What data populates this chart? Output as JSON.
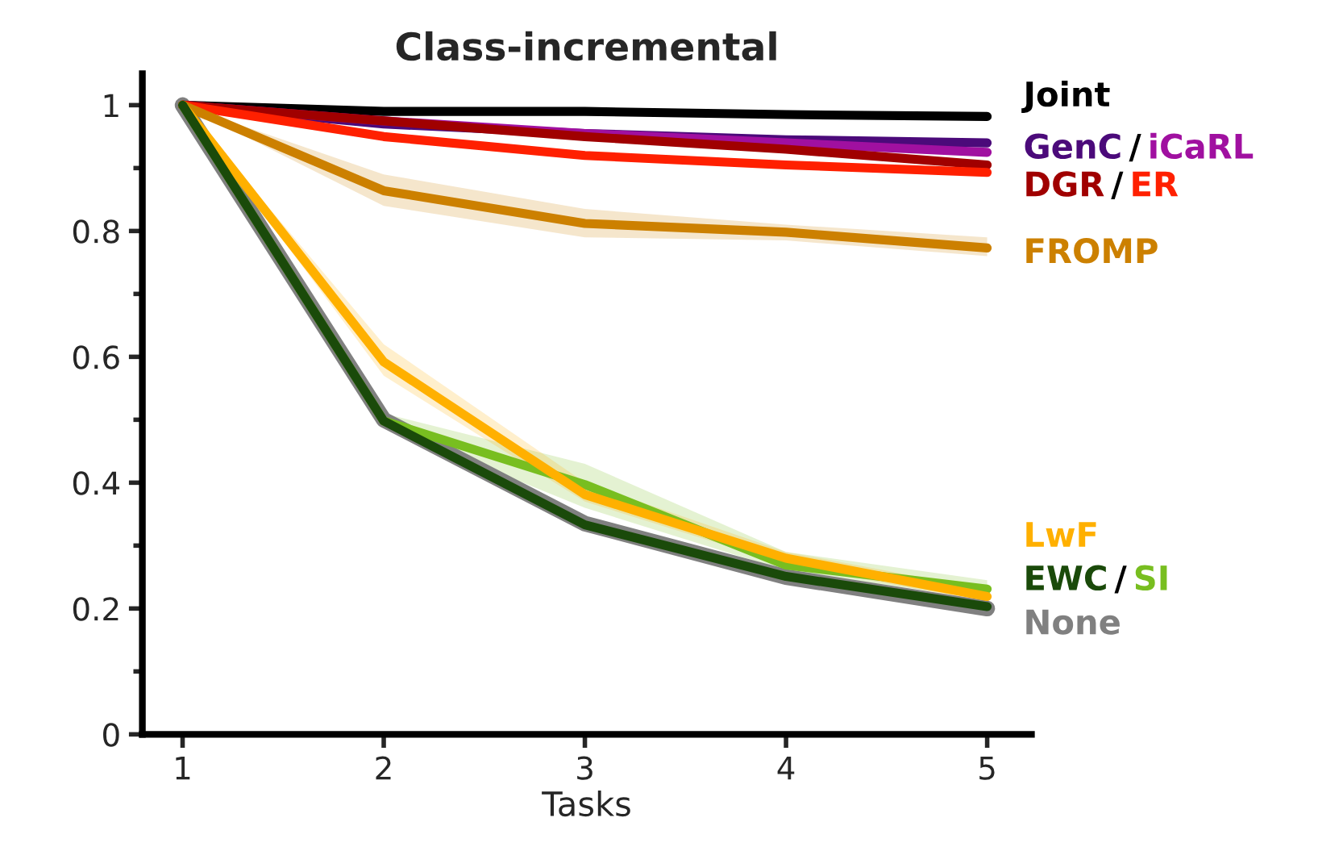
{
  "chart_data": {
    "type": "line",
    "title": "Class-incremental",
    "xlabel": "Tasks",
    "x": [
      1,
      2,
      3,
      4,
      5
    ],
    "series": [
      {
        "name": "None",
        "color": "#808080",
        "values": [
          1,
          0.5,
          0.335,
          0.25,
          0.2
        ]
      },
      {
        "name": "Joint",
        "color": "#000000",
        "values": [
          1,
          0.99,
          0.99,
          0.985,
          0.982
        ]
      },
      {
        "name": "GenC",
        "color": "#4b0a7a",
        "values": [
          1,
          0.97,
          0.955,
          0.945,
          0.94
        ]
      },
      {
        "name": "iCaRL",
        "color": "#a010a0",
        "values": [
          1,
          0.975,
          0.955,
          0.94,
          0.925
        ]
      },
      {
        "name": "DGR",
        "color": "#a00000",
        "values": [
          1,
          0.975,
          0.95,
          0.93,
          0.905
        ]
      },
      {
        "name": "ER",
        "color": "#ff2000",
        "values": [
          1,
          0.95,
          0.92,
          0.905,
          0.893
        ]
      },
      {
        "name": "FROMP",
        "color": "#cc8000",
        "values": [
          1,
          0.864,
          0.812,
          0.798,
          0.773
        ],
        "lower": [
          1,
          0.84,
          0.79,
          0.785,
          0.76
        ],
        "upper": [
          1,
          0.89,
          0.835,
          0.81,
          0.79
        ]
      },
      {
        "name": "SI",
        "color": "#78be20",
        "values": [
          1,
          0.498,
          0.397,
          0.269,
          0.231
        ],
        "lower": [
          1,
          0.49,
          0.36,
          0.26,
          0.215
        ],
        "upper": [
          1,
          0.51,
          0.43,
          0.29,
          0.245
        ]
      },
      {
        "name": "LwF",
        "color": "#ffb000",
        "values": [
          1,
          0.592,
          0.381,
          0.28,
          0.219
        ],
        "lower": [
          1,
          0.57,
          0.37,
          0.27,
          0.21
        ],
        "upper": [
          1,
          0.62,
          0.4,
          0.29,
          0.23
        ]
      },
      {
        "name": "EWC",
        "color": "#1a4a0a",
        "values": [
          1,
          0.498,
          0.333,
          0.251,
          0.203
        ]
      }
    ],
    "annotations": [
      "/",
      "/",
      "/"
    ],
    "xlim": [
      0.8,
      5.22
    ],
    "xticks": [
      1,
      2,
      3,
      4,
      5
    ],
    "ylim": [
      0,
      1.05
    ],
    "yticks": [
      0,
      {
        "value": 0.1,
        "label": null
      },
      0.2,
      {
        "value": 0.3,
        "label": null
      },
      0.4,
      {
        "value": 0.5,
        "label": null
      },
      0.6,
      {
        "value": 0.7,
        "label": null
      },
      0.8,
      {
        "value": 0.9,
        "label": null
      },
      1
    ],
    "grid": false,
    "legend": false
  }
}
